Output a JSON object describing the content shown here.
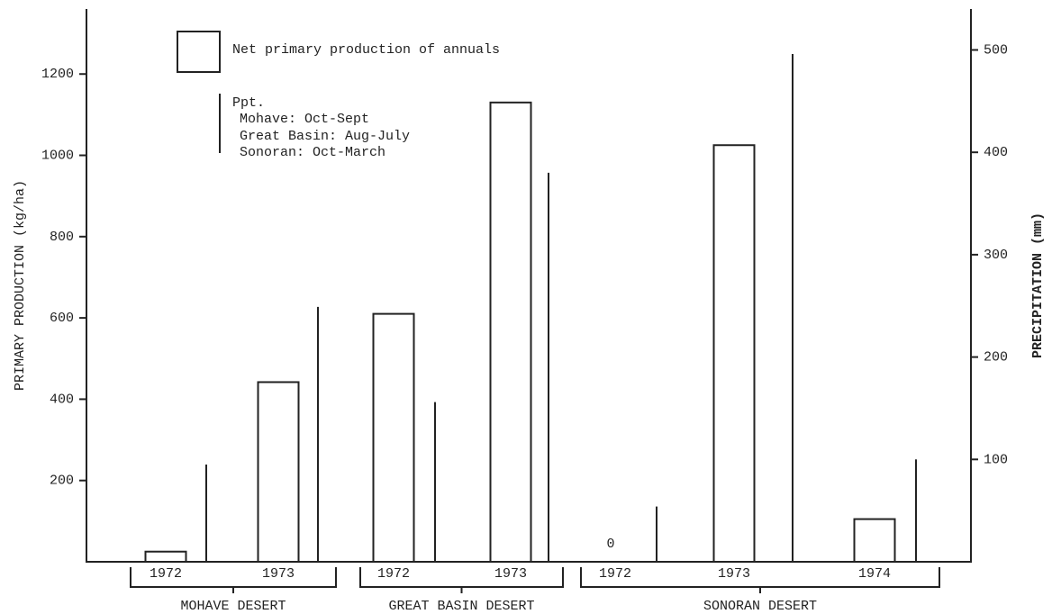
{
  "chart_data": {
    "type": "bar",
    "y_label": "PRIMARY PRODUCTION (kg/ha)",
    "y2_label": "PRECIPITATION (mm)",
    "groups": [
      {
        "name": "MOHAVE DESERT",
        "categories": [
          "1972",
          "1973"
        ]
      },
      {
        "name": "GREAT BASIN DESERT",
        "categories": [
          "1972",
          "1973"
        ]
      },
      {
        "name": "SONORAN DESERT",
        "categories": [
          "1972",
          "1973",
          "1974"
        ]
      }
    ],
    "series": [
      {
        "name": "Net primary production of annuals",
        "type": "bar",
        "color": "#222222",
        "values": [
          25,
          442,
          610,
          1130,
          0,
          1025,
          105
        ],
        "value_labels": [
          null,
          null,
          null,
          null,
          "0",
          null,
          null
        ]
      },
      {
        "name": "Ppt.",
        "type": "line",
        "axis": "y2",
        "color": "#222222",
        "values": [
          95,
          249,
          156,
          380,
          54,
          496,
          100
        ]
      }
    ],
    "legend_notes": [
      "Mohave: Oct-Sept",
      "Great Basin: Aug-July",
      "Sonoran: Oct-March"
    ],
    "ylim": [
      0,
      1360
    ],
    "yticks": [
      200,
      400,
      600,
      800,
      1000,
      1200
    ],
    "y2lim": [
      0,
      540
    ],
    "y2ticks": [
      100,
      200,
      300,
      400,
      500
    ]
  }
}
